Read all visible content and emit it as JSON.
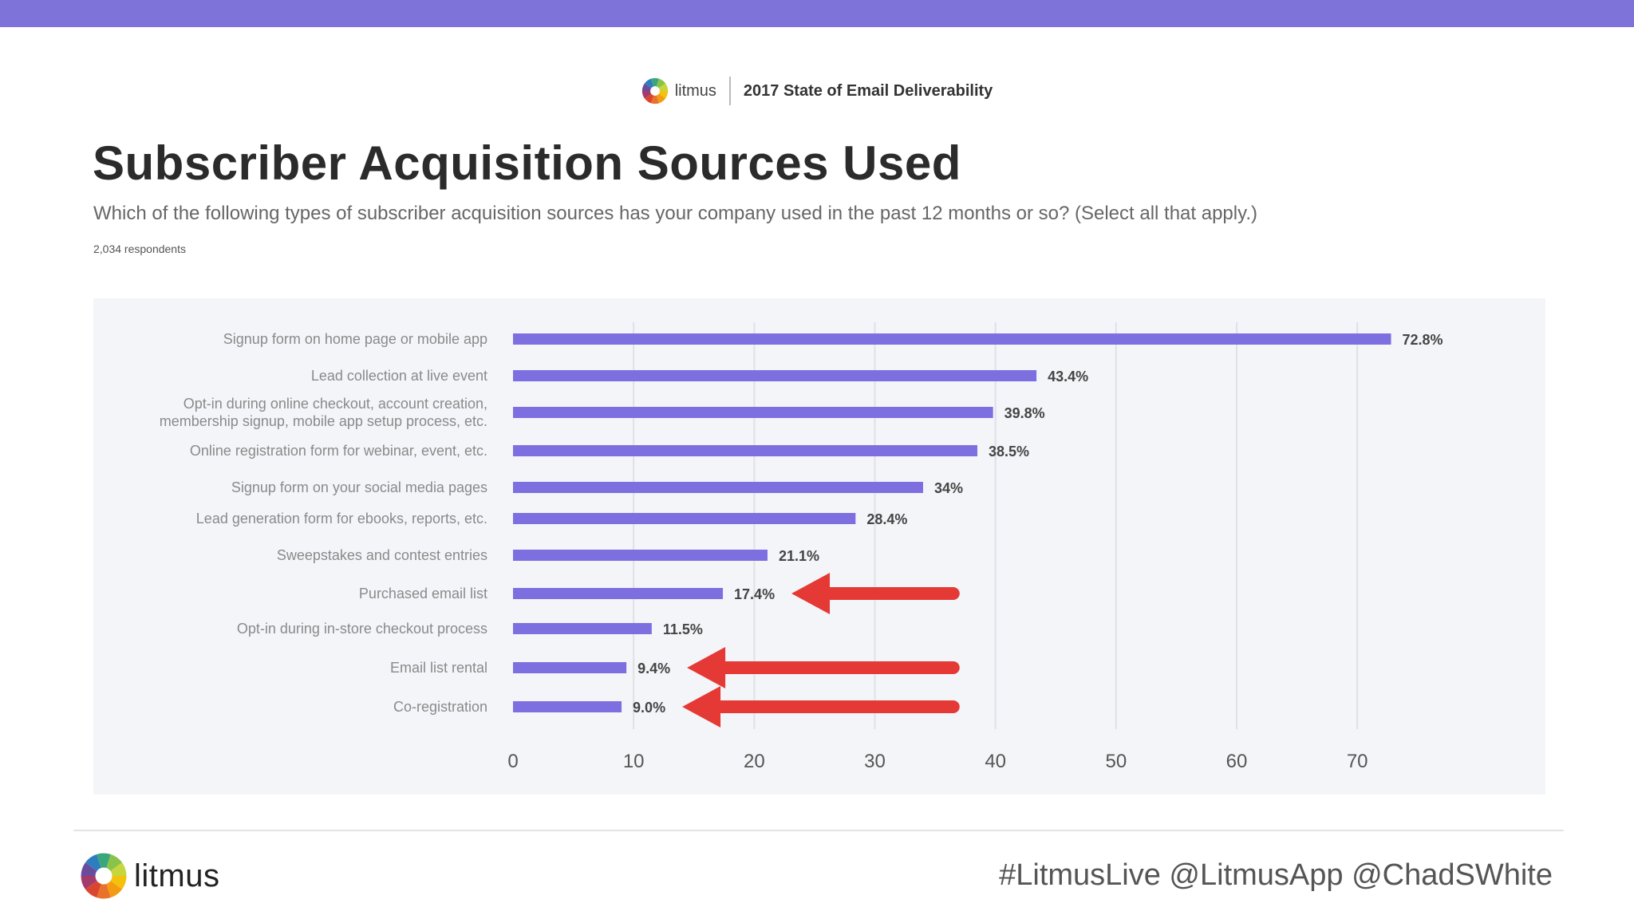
{
  "colors": {
    "topbar": "#7e73d8",
    "bar": "#7d6fe0",
    "arrow": "#e53935",
    "grid": "#dfe1e8"
  },
  "header": {
    "brand": "litmus",
    "report": "2017 State of Email Deliverability"
  },
  "title": "Subscriber Acquisition Sources Used",
  "subtitle": "Which of the following types of subscriber acquisition sources has your company used in the past 12 months or so? (Select all that apply.)",
  "respondents": "2,034 respondents",
  "chart_data": {
    "type": "bar",
    "orientation": "horizontal",
    "categories": [
      [
        "Signup form on home page or mobile app"
      ],
      [
        "Lead collection at live event"
      ],
      [
        "Opt-in during online checkout, account creation,",
        "membership signup, mobile app setup process, etc."
      ],
      [
        "Online registration form for webinar, event, etc."
      ],
      [
        "Signup form on your social media pages"
      ],
      [
        "Lead generation form for ebooks, reports, etc."
      ],
      [
        "Sweepstakes and contest entries"
      ],
      [
        "Purchased email list"
      ],
      [
        "Opt-in during in-store checkout process"
      ],
      [
        "Email list rental"
      ],
      [
        "Co-registration"
      ]
    ],
    "values": [
      72.8,
      43.4,
      39.8,
      38.5,
      34,
      28.4,
      21.1,
      17.4,
      11.5,
      9.4,
      9.0
    ],
    "value_labels": [
      "72.8%",
      "43.4%",
      "39.8%",
      "38.5%",
      "34%",
      "28.4%",
      "21.1%",
      "17.4%",
      "11.5%",
      "9.4%",
      "9.0%"
    ],
    "xticks": [
      0,
      10,
      20,
      30,
      40,
      50,
      60,
      70
    ],
    "xlim": [
      0,
      77
    ],
    "grid": true,
    "highlighted_indices": [
      7,
      9,
      10
    ]
  },
  "footer": {
    "brand": "litmus",
    "tagline": "#LitmusLive @LitmusApp @ChadSWhite"
  }
}
